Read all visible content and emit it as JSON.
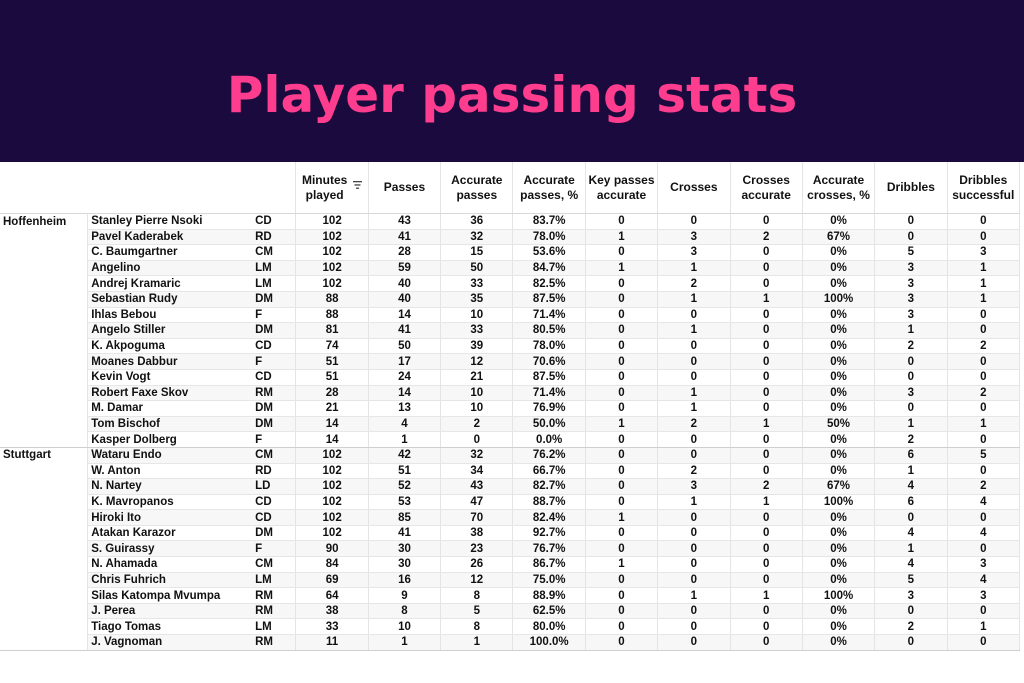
{
  "title": "Player passing stats",
  "accent_color": "#ff3d8f",
  "banner_color": "#1a0a3d",
  "sort_icon": "sort-lines-icon",
  "columns": [
    {
      "label": "Minutes\nplayed",
      "sort": true
    },
    {
      "label": "Passes"
    },
    {
      "label": "Accurate\npasses"
    },
    {
      "label": "Accurate\npasses, %"
    },
    {
      "label": "Key passes\naccurate"
    },
    {
      "label": "Crosses"
    },
    {
      "label": "Crosses\naccurate"
    },
    {
      "label": "Accurate\ncrosses, %"
    },
    {
      "label": "Dribbles"
    },
    {
      "label": "Dribbles\nsuccessful"
    }
  ],
  "groups": [
    {
      "team": "Hoffenheim",
      "rows": [
        {
          "name": "Stanley Pierre Nsoki",
          "pos": "CD",
          "vals": [
            "102",
            "43",
            "36",
            "83.7%",
            "0",
            "0",
            "0",
            "0%",
            "0",
            "0"
          ]
        },
        {
          "name": "Pavel Kaderabek",
          "pos": "RD",
          "vals": [
            "102",
            "41",
            "32",
            "78.0%",
            "1",
            "3",
            "2",
            "67%",
            "0",
            "0"
          ]
        },
        {
          "name": "C. Baumgartner",
          "pos": "CM",
          "vals": [
            "102",
            "28",
            "15",
            "53.6%",
            "0",
            "3",
            "0",
            "0%",
            "5",
            "3"
          ]
        },
        {
          "name": "Angelino",
          "pos": "LM",
          "vals": [
            "102",
            "59",
            "50",
            "84.7%",
            "1",
            "1",
            "0",
            "0%",
            "3",
            "1"
          ]
        },
        {
          "name": "Andrej Kramaric",
          "pos": "LM",
          "vals": [
            "102",
            "40",
            "33",
            "82.5%",
            "0",
            "2",
            "0",
            "0%",
            "3",
            "1"
          ]
        },
        {
          "name": "Sebastian Rudy",
          "pos": "DM",
          "vals": [
            "88",
            "40",
            "35",
            "87.5%",
            "0",
            "1",
            "1",
            "100%",
            "3",
            "1"
          ]
        },
        {
          "name": "Ihlas Bebou",
          "pos": "F",
          "vals": [
            "88",
            "14",
            "10",
            "71.4%",
            "0",
            "0",
            "0",
            "0%",
            "3",
            "0"
          ]
        },
        {
          "name": "Angelo Stiller",
          "pos": "DM",
          "vals": [
            "81",
            "41",
            "33",
            "80.5%",
            "0",
            "1",
            "0",
            "0%",
            "1",
            "0"
          ]
        },
        {
          "name": "K. Akpoguma",
          "pos": "CD",
          "vals": [
            "74",
            "50",
            "39",
            "78.0%",
            "0",
            "0",
            "0",
            "0%",
            "2",
            "2"
          ]
        },
        {
          "name": "Moanes Dabbur",
          "pos": "F",
          "vals": [
            "51",
            "17",
            "12",
            "70.6%",
            "0",
            "0",
            "0",
            "0%",
            "0",
            "0"
          ]
        },
        {
          "name": "Kevin Vogt",
          "pos": "CD",
          "vals": [
            "51",
            "24",
            "21",
            "87.5%",
            "0",
            "0",
            "0",
            "0%",
            "0",
            "0"
          ]
        },
        {
          "name": "Robert Faxe Skov",
          "pos": "RM",
          "vals": [
            "28",
            "14",
            "10",
            "71.4%",
            "0",
            "1",
            "0",
            "0%",
            "3",
            "2"
          ]
        },
        {
          "name": "M. Damar",
          "pos": "DM",
          "vals": [
            "21",
            "13",
            "10",
            "76.9%",
            "0",
            "1",
            "0",
            "0%",
            "0",
            "0"
          ]
        },
        {
          "name": "Tom Bischof",
          "pos": "DM",
          "vals": [
            "14",
            "4",
            "2",
            "50.0%",
            "1",
            "2",
            "1",
            "50%",
            "1",
            "1"
          ]
        },
        {
          "name": "Kasper Dolberg",
          "pos": "F",
          "vals": [
            "14",
            "1",
            "0",
            "0.0%",
            "0",
            "0",
            "0",
            "0%",
            "2",
            "0"
          ]
        }
      ]
    },
    {
      "team": "Stuttgart",
      "rows": [
        {
          "name": "Wataru Endo",
          "pos": "CM",
          "vals": [
            "102",
            "42",
            "32",
            "76.2%",
            "0",
            "0",
            "0",
            "0%",
            "6",
            "5"
          ]
        },
        {
          "name": "W. Anton",
          "pos": "RD",
          "vals": [
            "102",
            "51",
            "34",
            "66.7%",
            "0",
            "2",
            "0",
            "0%",
            "1",
            "0"
          ]
        },
        {
          "name": "N. Nartey",
          "pos": "LD",
          "vals": [
            "102",
            "52",
            "43",
            "82.7%",
            "0",
            "3",
            "2",
            "67%",
            "4",
            "2"
          ]
        },
        {
          "name": "K. Mavropanos",
          "pos": "CD",
          "vals": [
            "102",
            "53",
            "47",
            "88.7%",
            "0",
            "1",
            "1",
            "100%",
            "6",
            "4"
          ]
        },
        {
          "name": "Hiroki Ito",
          "pos": "CD",
          "vals": [
            "102",
            "85",
            "70",
            "82.4%",
            "1",
            "0",
            "0",
            "0%",
            "0",
            "0"
          ]
        },
        {
          "name": "Atakan Karazor",
          "pos": "DM",
          "vals": [
            "102",
            "41",
            "38",
            "92.7%",
            "0",
            "0",
            "0",
            "0%",
            "4",
            "4"
          ]
        },
        {
          "name": "S. Guirassy",
          "pos": "F",
          "vals": [
            "90",
            "30",
            "23",
            "76.7%",
            "0",
            "0",
            "0",
            "0%",
            "1",
            "0"
          ]
        },
        {
          "name": "N. Ahamada",
          "pos": "CM",
          "vals": [
            "84",
            "30",
            "26",
            "86.7%",
            "1",
            "0",
            "0",
            "0%",
            "4",
            "3"
          ]
        },
        {
          "name": "Chris Fuhrich",
          "pos": "LM",
          "vals": [
            "69",
            "16",
            "12",
            "75.0%",
            "0",
            "0",
            "0",
            "0%",
            "5",
            "4"
          ]
        },
        {
          "name": "Silas Katompa Mvumpa",
          "pos": "RM",
          "vals": [
            "64",
            "9",
            "8",
            "88.9%",
            "0",
            "1",
            "1",
            "100%",
            "3",
            "3"
          ]
        },
        {
          "name": "J. Perea",
          "pos": "RM",
          "vals": [
            "38",
            "8",
            "5",
            "62.5%",
            "0",
            "0",
            "0",
            "0%",
            "0",
            "0"
          ]
        },
        {
          "name": "Tiago Tomas",
          "pos": "LM",
          "vals": [
            "33",
            "10",
            "8",
            "80.0%",
            "0",
            "0",
            "0",
            "0%",
            "2",
            "1"
          ]
        },
        {
          "name": "J. Vagnoman",
          "pos": "RM",
          "vals": [
            "11",
            "1",
            "1",
            "100.0%",
            "0",
            "0",
            "0",
            "0%",
            "0",
            "0"
          ]
        }
      ]
    }
  ]
}
